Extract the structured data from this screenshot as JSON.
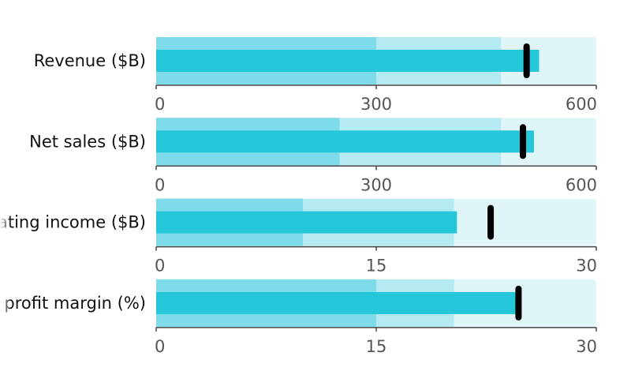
{
  "chart_data": {
    "type": "bullet",
    "colors": {
      "range_dark": "#7edbe9",
      "range_mid": "#b4ebf2",
      "range_light": "#dff5f8",
      "bar": "#26c6da",
      "marker": "#000000",
      "axis": "#444444"
    },
    "rows": [
      {
        "label": "Revenue ($B)",
        "value": 522,
        "target": 505,
        "ranges": [
          300,
          470,
          600
        ],
        "axis_min": 0,
        "axis_max": 600,
        "ticks": [
          "0",
          "300",
          "600"
        ]
      },
      {
        "label": "Net sales ($B)",
        "value": 515,
        "target": 500,
        "ranges": [
          250,
          470,
          600
        ],
        "axis_min": 0,
        "axis_max": 600,
        "ticks": [
          "0",
          "300",
          "600"
        ]
      },
      {
        "label": "Operating income ($B)",
        "value": 20.5,
        "target": 22.8,
        "ranges": [
          10,
          20.3,
          30
        ],
        "axis_min": 0,
        "axis_max": 30,
        "ticks": [
          "0",
          "15",
          "30"
        ]
      },
      {
        "label": "Net profit margin (%)",
        "value": 24.8,
        "target": 24.7,
        "ranges": [
          15,
          20.3,
          30
        ],
        "axis_min": 0,
        "axis_max": 30,
        "ticks": [
          "0",
          "15",
          "30"
        ]
      }
    ]
  }
}
